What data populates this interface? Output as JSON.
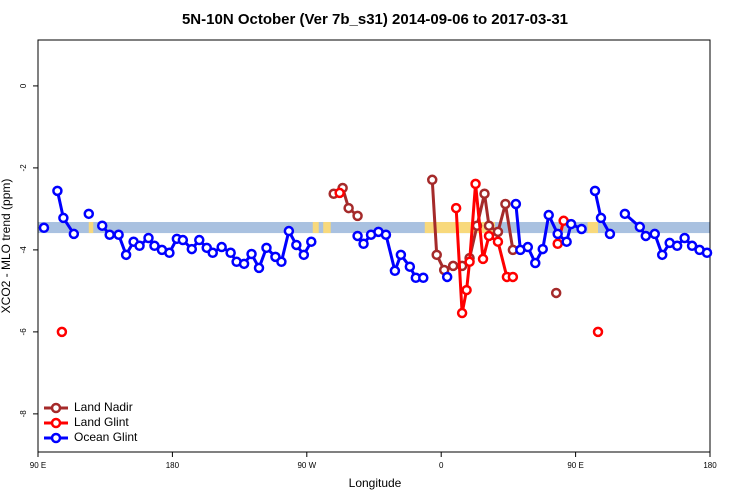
{
  "chart_data": {
    "type": "line",
    "title": "5N-10N October (Ver 7b_s31)   2014-09-06 to 2017-03-31",
    "x_label": "Longitude",
    "y_label": "XCO2 - MLO trend (ppm)",
    "xlim": [
      90,
      540
    ],
    "ylim": [
      -8.93,
      1.12
    ],
    "xticks": [
      {
        "value": 90,
        "label": "90 E"
      },
      {
        "value": 180,
        "label": "180"
      },
      {
        "value": 270,
        "label": "90 W"
      },
      {
        "value": 360,
        "label": "0"
      },
      {
        "value": 450,
        "label": "90 E"
      },
      {
        "value": 540,
        "label": "180"
      }
    ],
    "yticks": [
      0,
      -2,
      -4,
      -6,
      -8
    ],
    "legend": "bottom-left",
    "band": {
      "y": [
        -3.59,
        -3.32
      ],
      "color": "#a9c1e0",
      "highlight_color": "#f8d97c",
      "highlight_x": [
        [
          124,
          127
        ],
        [
          274,
          278
        ],
        [
          281,
          286
        ],
        [
          349,
          396
        ],
        [
          458,
          465
        ]
      ]
    },
    "series": [
      {
        "name": "Land Nadir",
        "color": "#a52a2a",
        "x": [
          288,
          294,
          298,
          304,
          null,
          354,
          357,
          362,
          368,
          374,
          379,
          384,
          389,
          392,
          398,
          403,
          408,
          null,
          437
        ],
        "values": [
          -2.63,
          -2.49,
          -2.98,
          -3.17,
          null,
          -2.29,
          -4.12,
          -4.49,
          -4.39,
          -4.39,
          -4.2,
          -3.41,
          -2.63,
          -3.41,
          -3.56,
          -2.88,
          -4.0,
          null,
          -5.05
        ]
      },
      {
        "name": "Land Glint",
        "color": "#ff0000",
        "x": [
          106,
          null,
          292,
          null,
          370,
          374,
          377,
          379,
          383,
          388,
          392,
          398,
          404,
          408,
          null,
          438,
          442,
          null,
          465
        ],
        "values": [
          -6.0,
          null,
          -2.61,
          null,
          -2.98,
          -5.54,
          -4.98,
          -4.29,
          -2.39,
          -4.22,
          -3.66,
          -3.8,
          -4.66,
          -4.66,
          null,
          -3.85,
          -3.29,
          null,
          -6.0
        ]
      },
      {
        "name": "Ocean Glint",
        "color": "#0000ff",
        "x": [
          94,
          null,
          103,
          107,
          114,
          null,
          124,
          null,
          133,
          138,
          144,
          149,
          154,
          158,
          164,
          168,
          173,
          178,
          183,
          187,
          193,
          198,
          203,
          207,
          213,
          219,
          223,
          228,
          233,
          238,
          243,
          249,
          253,
          258,
          263,
          268,
          273,
          null,
          304,
          308,
          313,
          318,
          323,
          329,
          333,
          339,
          343,
          348,
          null,
          364,
          null,
          410,
          413,
          418,
          423,
          428,
          432,
          438,
          444,
          447,
          454,
          null,
          463,
          467,
          473,
          null,
          483,
          493,
          497,
          503,
          508,
          513,
          518,
          523,
          528,
          533,
          538
        ],
        "values": [
          -3.46,
          null,
          -2.56,
          -3.22,
          -3.61,
          null,
          -3.12,
          null,
          -3.41,
          -3.63,
          -3.63,
          -4.12,
          -3.8,
          -3.9,
          -3.71,
          -3.9,
          -4.0,
          -4.07,
          -3.73,
          -3.76,
          -3.98,
          -3.76,
          -3.95,
          -4.07,
          -3.93,
          -4.07,
          -4.29,
          -4.34,
          -4.1,
          -4.44,
          -3.95,
          -4.17,
          -4.29,
          -3.54,
          -3.88,
          -4.12,
          -3.8,
          null,
          -3.66,
          -3.85,
          -3.63,
          -3.56,
          -3.63,
          -4.51,
          -4.12,
          -4.41,
          -4.68,
          -4.68,
          null,
          -4.66,
          null,
          -2.88,
          -4.0,
          -3.93,
          -4.32,
          -3.98,
          -3.15,
          -3.61,
          -3.8,
          -3.37,
          -3.49,
          null,
          -2.56,
          -3.22,
          -3.61,
          null,
          -3.12,
          -3.44,
          -3.66,
          -3.61,
          -4.12,
          -3.83,
          -3.9,
          -3.71,
          -3.9,
          -4.0,
          -4.07
        ]
      }
    ]
  }
}
